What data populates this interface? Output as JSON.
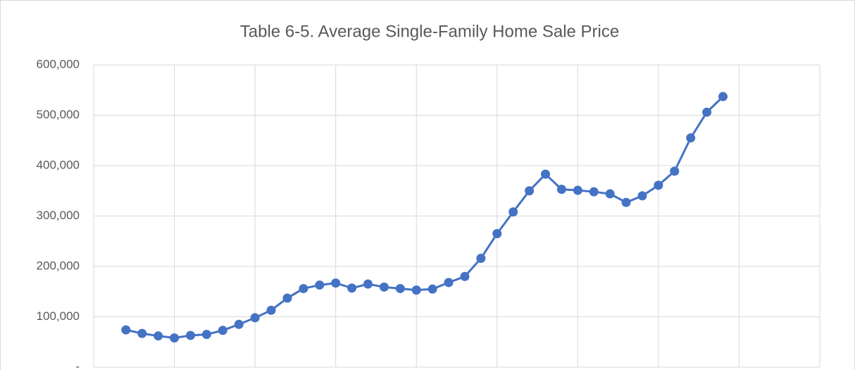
{
  "chart_data": {
    "type": "line",
    "title": "Table 6-5. Average Single-Family Home Sale Price",
    "x": [
      2,
      3,
      4,
      5,
      6,
      7,
      8,
      9,
      10,
      11,
      12,
      13,
      14,
      15,
      16,
      17,
      18,
      19,
      20,
      21,
      22,
      23,
      24,
      25,
      26,
      27,
      28,
      29,
      30,
      31,
      32,
      33,
      34,
      35,
      36,
      37,
      38,
      39
    ],
    "series": [
      {
        "color": "#4472c4",
        "values": [
          74000,
          67000,
          62000,
          58000,
          63000,
          65000,
          73000,
          85000,
          98000,
          113000,
          137000,
          156000,
          163000,
          167000,
          157000,
          165000,
          159000,
          156000,
          153000,
          155000,
          168000,
          180000,
          216000,
          265000,
          308000,
          350000,
          383000,
          353000,
          351000,
          348000,
          344000,
          327000,
          340000,
          361000,
          389000,
          455000,
          506000,
          537000
        ]
      }
    ],
    "xlim": [
      0,
      45
    ],
    "xticks": [
      0,
      5,
      10,
      15,
      20,
      25,
      30,
      35,
      40,
      45
    ],
    "ylim": [
      0,
      600000
    ],
    "yticks": [
      {
        "value": 0,
        "label": "-"
      },
      {
        "value": 100000,
        "label": "100,000"
      },
      {
        "value": 200000,
        "label": "200,000"
      },
      {
        "value": 300000,
        "label": "300,000"
      },
      {
        "value": 400000,
        "label": "400,000"
      },
      {
        "value": 500000,
        "label": "500,000"
      },
      {
        "value": 600000,
        "label": "600,000"
      }
    ],
    "grid": true
  }
}
